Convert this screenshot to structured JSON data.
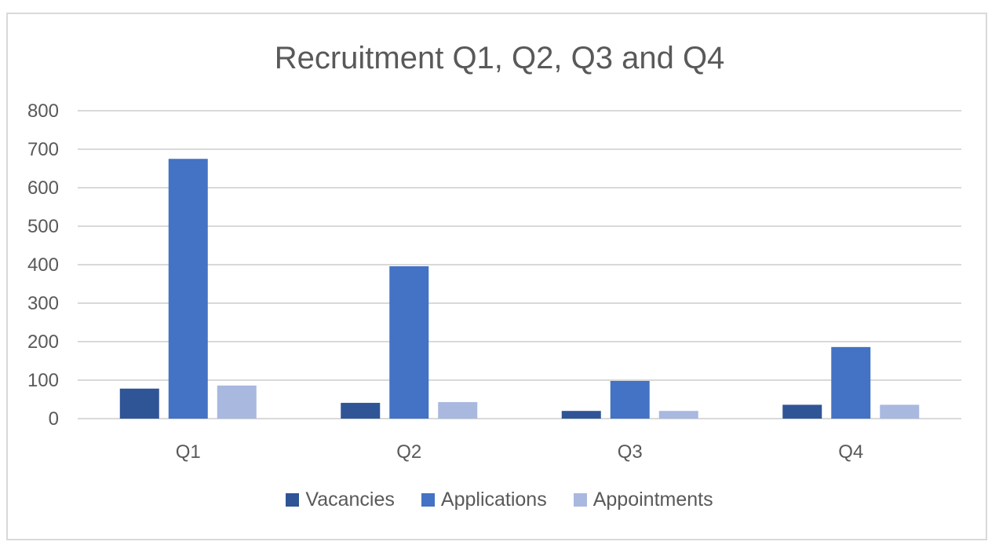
{
  "chart_data": {
    "type": "bar",
    "title": "Recruitment Q1, Q2, Q3 and Q4",
    "xlabel": "",
    "ylabel": "",
    "categories": [
      "Q1",
      "Q2",
      "Q3",
      "Q4"
    ],
    "series": [
      {
        "name": "Vacancies",
        "color": "#2f5597",
        "values": [
          78,
          41,
          20,
          36
        ]
      },
      {
        "name": "Applications",
        "color": "#4472c4",
        "values": [
          675,
          396,
          98,
          186
        ]
      },
      {
        "name": "Appointments",
        "color": "#a9b8df",
        "values": [
          86,
          43,
          20,
          36
        ]
      }
    ],
    "ylim": [
      0,
      800
    ],
    "yticks": [
      0,
      100,
      200,
      300,
      400,
      500,
      600,
      700,
      800
    ],
    "grid": true,
    "legend_position": "bottom"
  }
}
